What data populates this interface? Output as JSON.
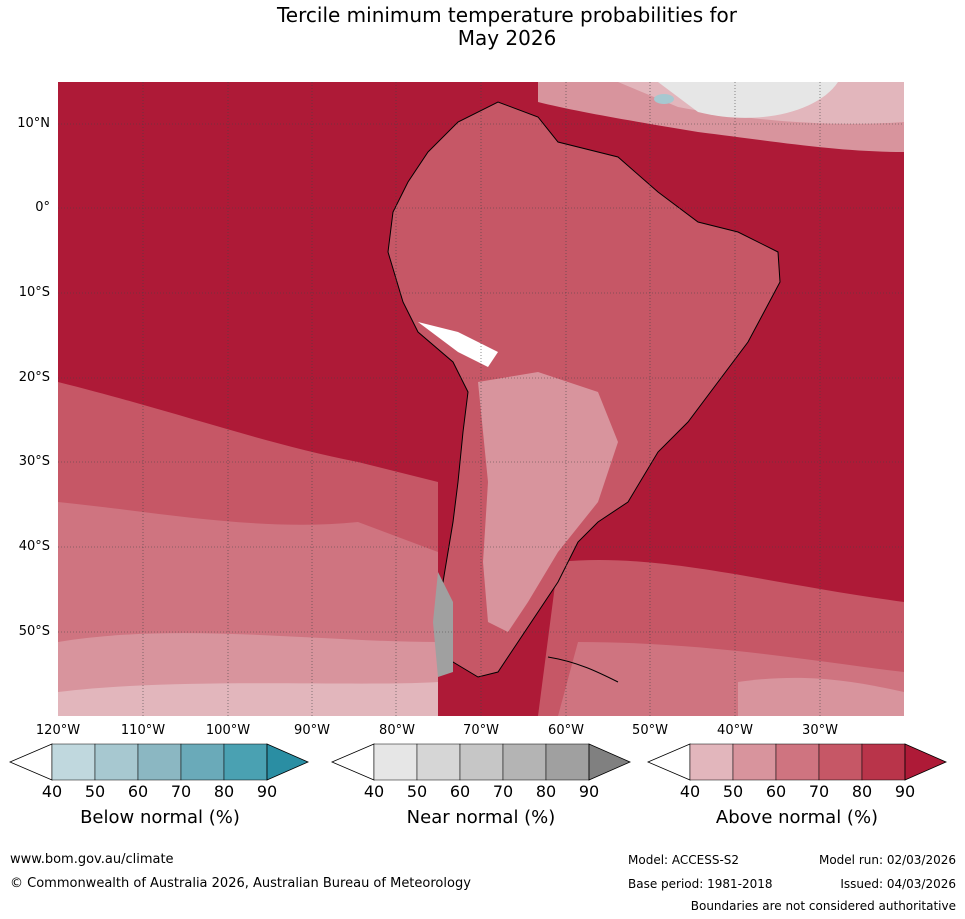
{
  "title": {
    "line1": "Tercile minimum temperature probabilities for",
    "line2": "May 2026"
  },
  "lat_labels": [
    "10°N",
    "0°",
    "10°S",
    "20°S",
    "30°S",
    "40°S",
    "50°S"
  ],
  "lon_labels": [
    "120°W",
    "110°W",
    "100°W",
    "90°W",
    "80°W",
    "70°W",
    "60°W",
    "50°W",
    "40°W",
    "30°W"
  ],
  "colorbars": [
    {
      "title": "Below normal (%)",
      "ticks": [
        "40",
        "50",
        "60",
        "70",
        "80",
        "90"
      ],
      "colors": [
        "#ffffff",
        "#c0d8de",
        "#a7c8d0",
        "#8bb7c2",
        "#6aaab9",
        "#4aa1b2",
        "#2a8ea3"
      ]
    },
    {
      "title": "Near normal (%)",
      "ticks": [
        "40",
        "50",
        "60",
        "70",
        "80",
        "90"
      ],
      "colors": [
        "#ffffff",
        "#e6e6e6",
        "#d6d6d6",
        "#c6c6c6",
        "#b4b4b4",
        "#a0a0a0",
        "#808080"
      ]
    },
    {
      "title": "Above normal (%)",
      "ticks": [
        "40",
        "50",
        "60",
        "70",
        "80",
        "90"
      ],
      "colors": [
        "#ffffff",
        "#e2b6bc",
        "#d8949d",
        "#cf7480",
        "#c65766",
        "#b9344a",
        "#ae1a37"
      ]
    }
  ],
  "footer": {
    "website": "www.bom.gov.au/climate",
    "copyright": "© Commonwealth of Australia 2026, Australian Bureau of Meteorology",
    "model": "Model: ACCESS-S2",
    "base_period": "Base period: 1981-2018",
    "model_run": "Model run: 02/03/2026",
    "issued": "Issued: 04/03/2026",
    "disclaimer": "Boundaries are not considered authoritative"
  }
}
